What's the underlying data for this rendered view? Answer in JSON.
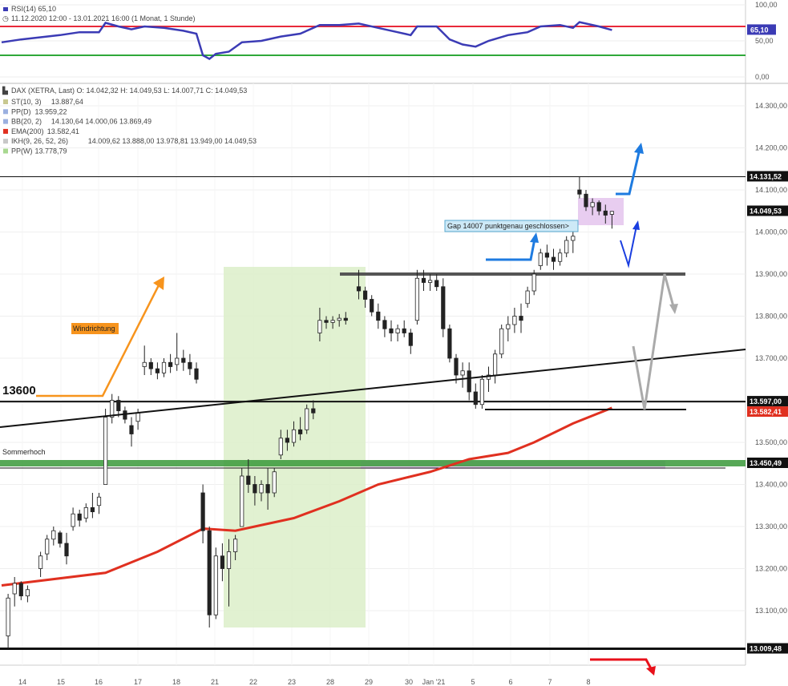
{
  "rsi_panel": {
    "title": "RSI(14)",
    "title_value": "65,10",
    "period": "11.12.2020 12:00 - 13.01.2021 16:00",
    "interval": "(1 Monat, 1 Stunde)",
    "ticks": [
      "100,00",
      "50,00",
      "0,00"
    ],
    "current_label": "65,10",
    "current_value": 65.1,
    "upper_level": 70,
    "lower_level": 30,
    "line_color": "#3b3bb5",
    "upper_color": "#e8293a",
    "lower_color": "#2fa83a"
  },
  "price_panel": {
    "instrument": "DAX (XETRA, Last)",
    "ohlc": "O: 14.042,32  H: 14.049,53  L: 14.007,71  C: 14.049,53",
    "indicators": [
      {
        "name": "ST(10, 3)",
        "values": "13.887,64",
        "color": "#c8c890"
      },
      {
        "name": "PP(D)",
        "values": "13.959,22",
        "color": "#9bb0e0"
      },
      {
        "name": "BB(20, 2)",
        "values": "14.130,64  14.000,06  13.869,49",
        "color": "#9bb0e0"
      },
      {
        "name": "EMA(200)",
        "values": "13.582,41",
        "color": "#e03020"
      },
      {
        "name": "IKH(9, 26, 52, 26)",
        "values": "14.009,62  13.888,00  13.978,81  13.949,00  14.049,53",
        "color": "#c8c8c8"
      },
      {
        "name": "PP(W)",
        "values": "13.778,79",
        "color": "#a8d890"
      }
    ]
  },
  "axis": {
    "price_ticks": [
      "14.300,00",
      "14.200,00",
      "14.100,00",
      "14.000,00",
      "13.900,00",
      "13.800,00",
      "13.700,00",
      "13.600,00",
      "13.500,00",
      "13.400,00",
      "13.300,00",
      "13.200,00",
      "13.100,00"
    ],
    "date_ticks": [
      "14",
      "15",
      "16",
      "17",
      "18",
      "21",
      "22",
      "23",
      "28",
      "29",
      "30",
      "Jan '21",
      "5",
      "6",
      "7",
      "8"
    ]
  },
  "badges": [
    {
      "label": "14.131,52",
      "value": 14131.52,
      "color": "#111111"
    },
    {
      "label": "14.049,53",
      "value": 14049.53,
      "color": "#111111"
    },
    {
      "label": "13.597,00",
      "value": 13597.0,
      "color": "#111111"
    },
    {
      "label": "13.582,41",
      "value": 13582.41,
      "color": "#e03020"
    },
    {
      "label": "13.450,49",
      "value": 13450.49,
      "color": "#111111"
    },
    {
      "label": "13.009,48",
      "value": 13009.48,
      "color": "#111111"
    }
  ],
  "annotations": {
    "level_13600": "13600",
    "sommerhoch": "Sommerhoch",
    "windrichtung": "Windrichtung",
    "gap": "Gap 14007 punktgenau geschlossen>"
  },
  "chart_data": {
    "type": "candlestick",
    "ylim": [
      13040,
      14360
    ],
    "rsi_ylim": [
      0,
      100
    ],
    "horizontal_levels": [
      14131.52,
      13900,
      13597,
      13575,
      13450.49,
      13009.48
    ],
    "candles": [
      {
        "x": 1,
        "o": 13040,
        "h": 13140,
        "l": 13010,
        "c": 13130
      },
      {
        "x": 2,
        "o": 13140,
        "h": 13180,
        "l": 13110,
        "c": 13165
      },
      {
        "x": 3,
        "o": 13165,
        "h": 13170,
        "l": 13125,
        "c": 13135
      },
      {
        "x": 4,
        "o": 13135,
        "h": 13160,
        "l": 13120,
        "c": 13150
      },
      {
        "x": 6,
        "o": 13200,
        "h": 13240,
        "l": 13180,
        "c": 13230
      },
      {
        "x": 7,
        "o": 13235,
        "h": 13280,
        "l": 13220,
        "c": 13270
      },
      {
        "x": 8,
        "o": 13270,
        "h": 13300,
        "l": 13255,
        "c": 13290
      },
      {
        "x": 9,
        "o": 13285,
        "h": 13290,
        "l": 13250,
        "c": 13260
      },
      {
        "x": 10,
        "o": 13260,
        "h": 13285,
        "l": 13210,
        "c": 13230
      },
      {
        "x": 11,
        "o": 13300,
        "h": 13345,
        "l": 13290,
        "c": 13330
      },
      {
        "x": 12,
        "o": 13330,
        "h": 13340,
        "l": 13300,
        "c": 13315
      },
      {
        "x": 13,
        "o": 13320,
        "h": 13355,
        "l": 13310,
        "c": 13345
      },
      {
        "x": 14,
        "o": 13345,
        "h": 13380,
        "l": 13320,
        "c": 13335
      },
      {
        "x": 15,
        "o": 13350,
        "h": 13380,
        "l": 13330,
        "c": 13370
      },
      {
        "x": 16,
        "o": 13400,
        "h": 13580,
        "l": 13410,
        "c": 13560
      },
      {
        "x": 17,
        "o": 13560,
        "h": 13615,
        "l": 13545,
        "c": 13600
      },
      {
        "x": 18,
        "o": 13600,
        "h": 13610,
        "l": 13560,
        "c": 13575
      },
      {
        "x": 19,
        "o": 13575,
        "h": 13585,
        "l": 13545,
        "c": 13555
      },
      {
        "x": 20,
        "o": 13540,
        "h": 13560,
        "l": 13490,
        "c": 13520
      },
      {
        "x": 21,
        "o": 13550,
        "h": 13580,
        "l": 13530,
        "c": 13570
      },
      {
        "x": 22,
        "o": 13680,
        "h": 13730,
        "l": 13660,
        "c": 13690
      },
      {
        "x": 23,
        "o": 13690,
        "h": 13700,
        "l": 13660,
        "c": 13675
      },
      {
        "x": 24,
        "o": 13675,
        "h": 13690,
        "l": 13650,
        "c": 13665
      },
      {
        "x": 25,
        "o": 13665,
        "h": 13700,
        "l": 13655,
        "c": 13690
      },
      {
        "x": 26,
        "o": 13690,
        "h": 13710,
        "l": 13665,
        "c": 13680
      },
      {
        "x": 27,
        "o": 13685,
        "h": 13760,
        "l": 13670,
        "c": 13700
      },
      {
        "x": 28,
        "o": 13700,
        "h": 13720,
        "l": 13670,
        "c": 13690
      },
      {
        "x": 29,
        "o": 13690,
        "h": 13710,
        "l": 13660,
        "c": 13675
      },
      {
        "x": 30,
        "o": 13675,
        "h": 13690,
        "l": 13640,
        "c": 13650
      },
      {
        "x": 31,
        "o": 13380,
        "h": 13400,
        "l": 13260,
        "c": 13290
      },
      {
        "x": 32,
        "o": 13290,
        "h": 13300,
        "l": 13060,
        "c": 13090
      },
      {
        "x": 33,
        "o": 13090,
        "h": 13250,
        "l": 13080,
        "c": 13230
      },
      {
        "x": 34,
        "o": 13230,
        "h": 13260,
        "l": 13170,
        "c": 13200
      },
      {
        "x": 35,
        "o": 13200,
        "h": 13270,
        "l": 13110,
        "c": 13240
      },
      {
        "x": 36,
        "o": 13240,
        "h": 13280,
        "l": 13220,
        "c": 13270
      },
      {
        "x": 37,
        "o": 13300,
        "h": 13440,
        "l": 13300,
        "c": 13420
      },
      {
        "x": 38,
        "o": 13420,
        "h": 13460,
        "l": 13380,
        "c": 13400
      },
      {
        "x": 39,
        "o": 13400,
        "h": 13420,
        "l": 13350,
        "c": 13380
      },
      {
        "x": 40,
        "o": 13380,
        "h": 13410,
        "l": 13360,
        "c": 13400
      },
      {
        "x": 41,
        "o": 13400,
        "h": 13440,
        "l": 13340,
        "c": 13380
      },
      {
        "x": 42,
        "o": 13380,
        "h": 13440,
        "l": 13370,
        "c": 13430
      },
      {
        "x": 43,
        "o": 13470,
        "h": 13530,
        "l": 13460,
        "c": 13510
      },
      {
        "x": 44,
        "o": 13510,
        "h": 13530,
        "l": 13480,
        "c": 13500
      },
      {
        "x": 45,
        "o": 13500,
        "h": 13550,
        "l": 13490,
        "c": 13530
      },
      {
        "x": 46,
        "o": 13530,
        "h": 13560,
        "l": 13505,
        "c": 13520
      },
      {
        "x": 47,
        "o": 13530,
        "h": 13590,
        "l": 13520,
        "c": 13580
      },
      {
        "x": 48,
        "o": 13580,
        "h": 13600,
        "l": 13555,
        "c": 13570
      },
      {
        "x": 49,
        "o": 13760,
        "h": 13820,
        "l": 13740,
        "c": 13790
      },
      {
        "x": 50,
        "o": 13790,
        "h": 13800,
        "l": 13770,
        "c": 13785
      },
      {
        "x": 51,
        "o": 13785,
        "h": 13800,
        "l": 13770,
        "c": 13790
      },
      {
        "x": 52,
        "o": 13790,
        "h": 13805,
        "l": 13775,
        "c": 13795
      },
      {
        "x": 53,
        "o": 13795,
        "h": 13810,
        "l": 13780,
        "c": 13790
      },
      {
        "x": 55,
        "o": 13870,
        "h": 13910,
        "l": 13840,
        "c": 13860
      },
      {
        "x": 56,
        "o": 13860,
        "h": 13870,
        "l": 13820,
        "c": 13840
      },
      {
        "x": 57,
        "o": 13840,
        "h": 13850,
        "l": 13800,
        "c": 13810
      },
      {
        "x": 58,
        "o": 13810,
        "h": 13830,
        "l": 13770,
        "c": 13790
      },
      {
        "x": 59,
        "o": 13790,
        "h": 13800,
        "l": 13750,
        "c": 13770
      },
      {
        "x": 60,
        "o": 13770,
        "h": 13790,
        "l": 13740,
        "c": 13760
      },
      {
        "x": 61,
        "o": 13760,
        "h": 13780,
        "l": 13740,
        "c": 13770
      },
      {
        "x": 62,
        "o": 13770,
        "h": 13790,
        "l": 13750,
        "c": 13760
      },
      {
        "x": 63,
        "o": 13760,
        "h": 13770,
        "l": 13710,
        "c": 13730
      },
      {
        "x": 64,
        "o": 13790,
        "h": 13910,
        "l": 13780,
        "c": 13890
      },
      {
        "x": 65,
        "o": 13890,
        "h": 13910,
        "l": 13860,
        "c": 13880
      },
      {
        "x": 66,
        "o": 13880,
        "h": 13900,
        "l": 13860,
        "c": 13885
      },
      {
        "x": 67,
        "o": 13885,
        "h": 13900,
        "l": 13860,
        "c": 13870
      },
      {
        "x": 68,
        "o": 13870,
        "h": 13890,
        "l": 13750,
        "c": 13770
      },
      {
        "x": 69,
        "o": 13770,
        "h": 13780,
        "l": 13690,
        "c": 13700
      },
      {
        "x": 70,
        "o": 13700,
        "h": 13710,
        "l": 13640,
        "c": 13660
      },
      {
        "x": 71,
        "o": 13660,
        "h": 13690,
        "l": 13630,
        "c": 13670
      },
      {
        "x": 72,
        "o": 13670,
        "h": 13690,
        "l": 13600,
        "c": 13620
      },
      {
        "x": 73,
        "o": 13620,
        "h": 13640,
        "l": 13580,
        "c": 13590
      },
      {
        "x": 74,
        "o": 13590,
        "h": 13660,
        "l": 13580,
        "c": 13650
      },
      {
        "x": 75,
        "o": 13650,
        "h": 13680,
        "l": 13620,
        "c": 13660
      },
      {
        "x": 76,
        "o": 13660,
        "h": 13720,
        "l": 13640,
        "c": 13710
      },
      {
        "x": 77,
        "o": 13710,
        "h": 13780,
        "l": 13700,
        "c": 13770
      },
      {
        "x": 78,
        "o": 13770,
        "h": 13800,
        "l": 13740,
        "c": 13780
      },
      {
        "x": 79,
        "o": 13780,
        "h": 13820,
        "l": 13760,
        "c": 13800
      },
      {
        "x": 80,
        "o": 13800,
        "h": 13830,
        "l": 13760,
        "c": 13790
      },
      {
        "x": 81,
        "o": 13830,
        "h": 13870,
        "l": 13820,
        "c": 13860
      },
      {
        "x": 82,
        "o": 13860,
        "h": 13910,
        "l": 13850,
        "c": 13900
      },
      {
        "x": 83,
        "o": 13920,
        "h": 13960,
        "l": 13910,
        "c": 13950
      },
      {
        "x": 84,
        "o": 13950,
        "h": 13970,
        "l": 13920,
        "c": 13940
      },
      {
        "x": 85,
        "o": 13940,
        "h": 13960,
        "l": 13910,
        "c": 13930
      },
      {
        "x": 86,
        "o": 13930,
        "h": 13960,
        "l": 13920,
        "c": 13950
      },
      {
        "x": 87,
        "o": 13950,
        "h": 13990,
        "l": 13940,
        "c": 13980
      },
      {
        "x": 88,
        "o": 13980,
        "h": 14010,
        "l": 13950,
        "c": 13990
      },
      {
        "x": 89,
        "o": 14100,
        "h": 14131,
        "l": 14080,
        "c": 14090
      },
      {
        "x": 90,
        "o": 14090,
        "h": 14100,
        "l": 14050,
        "c": 14060
      },
      {
        "x": 91,
        "o": 14060,
        "h": 14080,
        "l": 14040,
        "c": 14070
      },
      {
        "x": 92,
        "o": 14070,
        "h": 14075,
        "l": 14040,
        "c": 14050
      },
      {
        "x": 93,
        "o": 14050,
        "h": 14065,
        "l": 14020,
        "c": 14040
      },
      {
        "x": 94,
        "o": 14042,
        "h": 14050,
        "l": 14008,
        "c": 14049
      }
    ],
    "ema200": [
      [
        0,
        13160
      ],
      [
        16,
        13190
      ],
      [
        24,
        13240
      ],
      [
        31,
        13295
      ],
      [
        36,
        13290
      ],
      [
        45,
        13320
      ],
      [
        52,
        13360
      ],
      [
        58,
        13400
      ],
      [
        66,
        13430
      ],
      [
        72,
        13460
      ],
      [
        78,
        13475
      ],
      [
        82,
        13500
      ],
      [
        88,
        13545
      ],
      [
        94,
        13582
      ]
    ],
    "rsi": [
      [
        0,
        48
      ],
      [
        3,
        52
      ],
      [
        6,
        55
      ],
      [
        9,
        58
      ],
      [
        12,
        62
      ],
      [
        15,
        62
      ],
      [
        16,
        75
      ],
      [
        18,
        70
      ],
      [
        20,
        66
      ],
      [
        22,
        70
      ],
      [
        25,
        68
      ],
      [
        28,
        64
      ],
      [
        30,
        60
      ],
      [
        31,
        30
      ],
      [
        32,
        25
      ],
      [
        33,
        32
      ],
      [
        35,
        35
      ],
      [
        37,
        48
      ],
      [
        40,
        50
      ],
      [
        43,
        56
      ],
      [
        46,
        60
      ],
      [
        49,
        72
      ],
      [
        52,
        72
      ],
      [
        55,
        74
      ],
      [
        58,
        68
      ],
      [
        61,
        62
      ],
      [
        63,
        58
      ],
      [
        64,
        70
      ],
      [
        67,
        70
      ],
      [
        69,
        52
      ],
      [
        71,
        45
      ],
      [
        73,
        42
      ],
      [
        75,
        50
      ],
      [
        78,
        58
      ],
      [
        81,
        62
      ],
      [
        83,
        70
      ],
      [
        86,
        72
      ],
      [
        88,
        68
      ],
      [
        89,
        76
      ],
      [
        92,
        70
      ],
      [
        94,
        65
      ]
    ]
  }
}
